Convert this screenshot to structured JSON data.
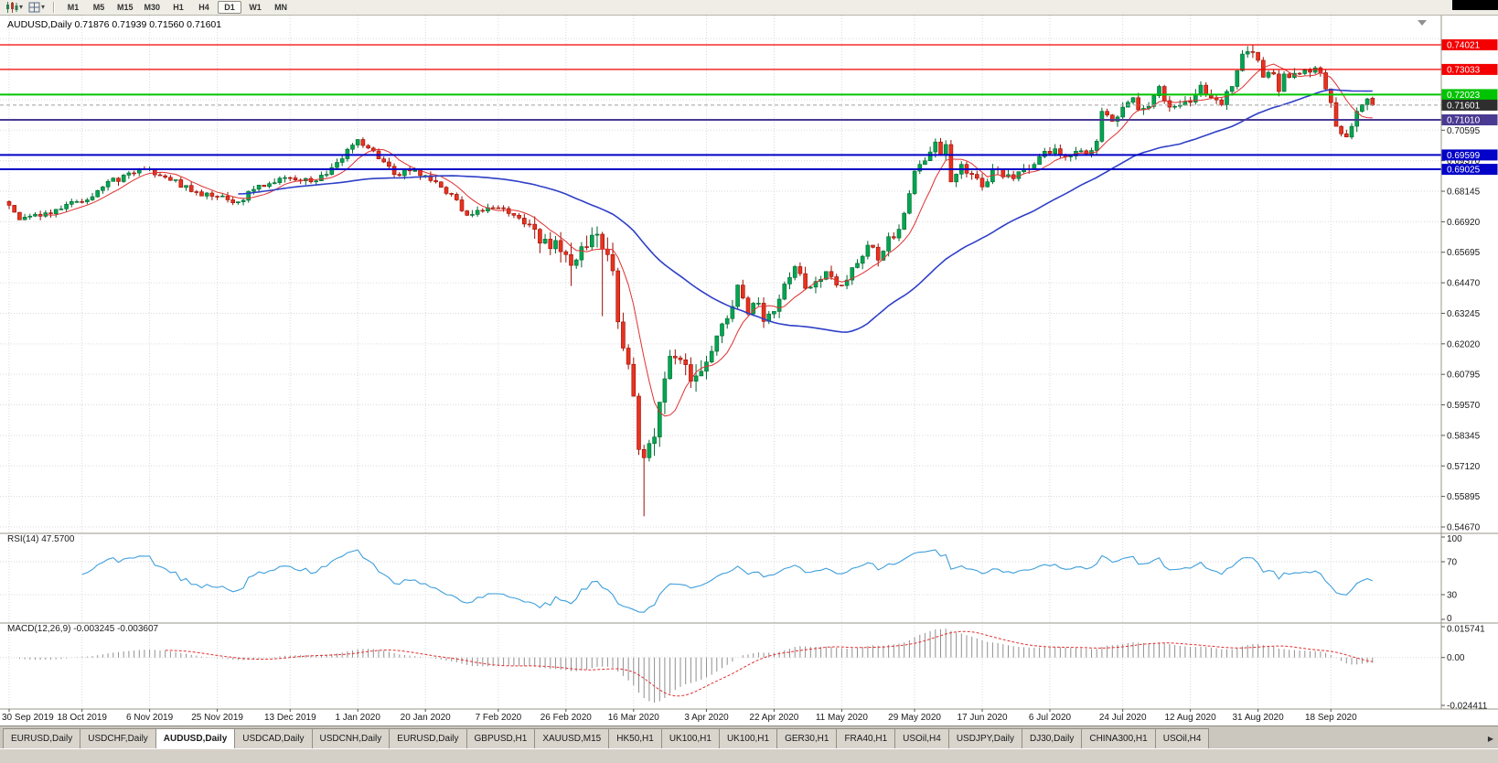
{
  "toolbar": {
    "timeframes": [
      "M1",
      "M5",
      "M15",
      "M30",
      "H1",
      "H4",
      "D1",
      "W1",
      "MN"
    ],
    "active_timeframe": "D1",
    "icons": {
      "chart_type": "candlestick-chart-icon",
      "profiles": "chart-grid-icon",
      "caret": "▾",
      "tab_scroll": "▶",
      "autoscroll_marker": "▼"
    }
  },
  "chart": {
    "symbol": "AUDUSD",
    "period": "Daily",
    "header": "AUDUSD,Daily 0.71876 0.71939 0.71560 0.71601",
    "open": "0.71876",
    "high": "0.71939",
    "low": "0.71560",
    "close": "0.71601"
  },
  "price_axis": {
    "gridline_labels": [
      "0.70595",
      "0.69370",
      "0.68145",
      "0.66920",
      "0.65695",
      "0.64470",
      "0.63245",
      "0.62020",
      "0.60795",
      "0.59570",
      "0.58345",
      "0.57120",
      "0.55895",
      "0.54670"
    ]
  },
  "rsi_panel": {
    "label": "RSI(14) 47.5700",
    "period": 14,
    "value": 47.57,
    "axis_labels": [
      "100",
      "70",
      "30",
      "0"
    ],
    "levels": [
      70,
      30
    ],
    "line_color": "#3F9FDC"
  },
  "macd_panel": {
    "label": "MACD(12,26,9) -0.003245 -0.003607",
    "macd_value": -0.003245,
    "signal_value": -0.003607,
    "axis_labels": [
      "0.015741",
      "0.00",
      "-0.024411"
    ],
    "axis_max": 0.015741,
    "axis_min": -0.024411,
    "histogram_color": "#909090",
    "signal_color": "#E03030"
  },
  "date_axis": {
    "labels": [
      "30 Sep 2019",
      "18 Oct 2019",
      "6 Nov 2019",
      "25 Nov 2019",
      "13 Dec 2019",
      "1 Jan 2020",
      "20 Jan 2020",
      "7 Feb 2020",
      "26 Feb 2020",
      "16 Mar 2020",
      "3 Apr 2020",
      "22 Apr 2020",
      "11 May 2020",
      "29 May 2020",
      "17 Jun 2020",
      "6 Jul 2020",
      "24 Jul 2020",
      "12 Aug 2020",
      "31 Aug 2020",
      "18 Sep 2020"
    ]
  },
  "tabs": {
    "items": [
      "EURUSD,Daily",
      "USDCHF,Daily",
      "AUDUSD,Daily",
      "USDCAD,Daily",
      "USDCNH,Daily",
      "EURUSD,Daily",
      "GBPUSD,H1",
      "XAUUSD,M15",
      "HK50,H1",
      "UK100,H1",
      "UK100,H1",
      "GER30,H1",
      "FRA40,H1",
      "USOil,H4",
      "USDJPY,Daily",
      "DJ30,Daily",
      "CHINA300,H1",
      "USOil,H4"
    ],
    "active_index": 2,
    "scroll_right_icon": "▶"
  },
  "chart_data": {
    "type": "candlestick",
    "symbol": "AUDUSD",
    "timeframe": "D1",
    "bars_total": 263,
    "up_color": "#00A651",
    "up_dark": "#00662F",
    "down_color": "#E8321F",
    "down_dark": "#9A0E04",
    "price_grid_min": 0.5467,
    "price_grid_step": 0.01225,
    "price_grid_count": 17,
    "date_tick_bars": [
      0,
      14,
      27,
      40,
      54,
      67,
      80,
      94,
      107,
      120,
      134,
      147,
      160,
      174,
      187,
      200,
      214,
      227,
      240,
      254
    ],
    "anchors": [
      [
        0,
        0.6758
      ],
      [
        2,
        0.67
      ],
      [
        5,
        0.6722
      ],
      [
        9,
        0.6742
      ],
      [
        14,
        0.6772
      ],
      [
        18,
        0.6832
      ],
      [
        23,
        0.6888
      ],
      [
        27,
        0.6905
      ],
      [
        31,
        0.6858
      ],
      [
        36,
        0.6812
      ],
      [
        40,
        0.6792
      ],
      [
        44,
        0.6772
      ],
      [
        47,
        0.6822
      ],
      [
        50,
        0.6845
      ],
      [
        54,
        0.6868
      ],
      [
        58,
        0.6852
      ],
      [
        61,
        0.6882
      ],
      [
        64,
        0.6945
      ],
      [
        66,
        0.7
      ],
      [
        67,
        0.7022
      ],
      [
        69,
        0.6988
      ],
      [
        72,
        0.6932
      ],
      [
        74,
        0.6882
      ],
      [
        78,
        0.6898
      ],
      [
        82,
        0.6852
      ],
      [
        85,
        0.6802
      ],
      [
        88,
        0.6718
      ],
      [
        91,
        0.6735
      ],
      [
        94,
        0.6748
      ],
      [
        97,
        0.6718
      ],
      [
        100,
        0.6682
      ],
      [
        103,
        0.6622
      ],
      [
        106,
        0.6572
      ],
      [
        108,
        0.6517
      ],
      [
        110,
        0.6592
      ],
      [
        112,
        0.6638
      ],
      [
        114,
        0.6582
      ],
      [
        116,
        0.6495
      ],
      [
        117,
        0.629
      ],
      [
        118,
        0.6185
      ],
      [
        119,
        0.612
      ],
      [
        120,
        0.5992
      ],
      [
        121,
        0.5778
      ],
      [
        122,
        0.5745
      ],
      [
        123,
        0.5802
      ],
      [
        124,
        0.5828
      ],
      [
        125,
        0.5968
      ],
      [
        126,
        0.6062
      ],
      [
        127,
        0.6152
      ],
      [
        129,
        0.6138
      ],
      [
        131,
        0.6052
      ],
      [
        133,
        0.6092
      ],
      [
        135,
        0.6172
      ],
      [
        137,
        0.6282
      ],
      [
        139,
        0.6352
      ],
      [
        140,
        0.6438
      ],
      [
        142,
        0.6322
      ],
      [
        144,
        0.6365
      ],
      [
        145,
        0.6292
      ],
      [
        147,
        0.6332
      ],
      [
        150,
        0.6468
      ],
      [
        151,
        0.6512
      ],
      [
        153,
        0.6425
      ],
      [
        155,
        0.6452
      ],
      [
        157,
        0.6492
      ],
      [
        159,
        0.6438
      ],
      [
        161,
        0.6458
      ],
      [
        163,
        0.6525
      ],
      [
        165,
        0.6598
      ],
      [
        167,
        0.6538
      ],
      [
        169,
        0.6632
      ],
      [
        171,
        0.6662
      ],
      [
        173,
        0.6805
      ],
      [
        174,
        0.6895
      ],
      [
        175,
        0.6922
      ],
      [
        177,
        0.6972
      ],
      [
        178,
        0.7012
      ],
      [
        179,
        0.6962
      ],
      [
        180,
        0.7002
      ],
      [
        181,
        0.6852
      ],
      [
        183,
        0.6922
      ],
      [
        185,
        0.6882
      ],
      [
        187,
        0.6832
      ],
      [
        189,
        0.6905
      ],
      [
        191,
        0.6872
      ],
      [
        193,
        0.6865
      ],
      [
        195,
        0.6905
      ],
      [
        197,
        0.6922
      ],
      [
        199,
        0.6975
      ],
      [
        201,
        0.6985
      ],
      [
        203,
        0.6952
      ],
      [
        205,
        0.6975
      ],
      [
        207,
        0.6965
      ],
      [
        209,
        0.7015
      ],
      [
        210,
        0.7135
      ],
      [
        212,
        0.7095
      ],
      [
        214,
        0.7152
      ],
      [
        216,
        0.719
      ],
      [
        217,
        0.7142
      ],
      [
        219,
        0.7155
      ],
      [
        221,
        0.7235
      ],
      [
        223,
        0.7152
      ],
      [
        225,
        0.716
      ],
      [
        227,
        0.7172
      ],
      [
        229,
        0.724
      ],
      [
        231,
        0.719
      ],
      [
        233,
        0.7162
      ],
      [
        235,
        0.7235
      ],
      [
        237,
        0.7365
      ],
      [
        238,
        0.7375
      ],
      [
        239,
        0.7372
      ],
      [
        240,
        0.734
      ],
      [
        241,
        0.7272
      ],
      [
        243,
        0.7285
      ],
      [
        244,
        0.7215
      ],
      [
        245,
        0.7285
      ],
      [
        247,
        0.7288
      ],
      [
        249,
        0.73
      ],
      [
        251,
        0.731
      ],
      [
        252,
        0.729
      ],
      [
        253,
        0.7225
      ],
      [
        254,
        0.717
      ],
      [
        255,
        0.7075
      ],
      [
        256,
        0.7045
      ],
      [
        257,
        0.7032
      ],
      [
        258,
        0.7075
      ],
      [
        259,
        0.7135
      ],
      [
        260,
        0.7162
      ],
      [
        261,
        0.7185
      ],
      [
        262,
        0.71601
      ]
    ],
    "special_bars": {
      "108": {
        "low": 0.6434
      },
      "114": {
        "low": 0.6313
      },
      "122": {
        "low": 0.551
      },
      "239": {
        "high": 0.74021
      },
      "262": {
        "open": 0.71876,
        "high": 0.71939,
        "low": 0.7156,
        "close": 0.71601
      }
    },
    "moving_averages": [
      {
        "period": 8,
        "color": "#E03030",
        "width": 1
      },
      {
        "period": 45,
        "color": "#2F3FC8",
        "width": 1.6
      }
    ],
    "horizontal_lines": [
      {
        "price": 0.74021,
        "label": "0.74021",
        "color": "#F40000",
        "width": 1.3
      },
      {
        "price": 0.73033,
        "label": "0.73033",
        "color": "#F40000",
        "width": 1.3
      },
      {
        "price": 0.72023,
        "label": "0.72023",
        "color": "#00C400",
        "width": 2
      },
      {
        "price": 0.7101,
        "label": "0.71010",
        "color": "#4B3A92",
        "width": 2
      },
      {
        "price": 0.69599,
        "label": "0.69599",
        "color": "#0202C8",
        "width": 2
      },
      {
        "price": 0.69025,
        "label": "0.69025",
        "color": "#0202C8",
        "width": 2
      }
    ],
    "current_price_line": {
      "price": 0.71601,
      "label": "0.71601",
      "line_color": "#9F9F9F",
      "box_color": "#2E2E2E"
    }
  }
}
